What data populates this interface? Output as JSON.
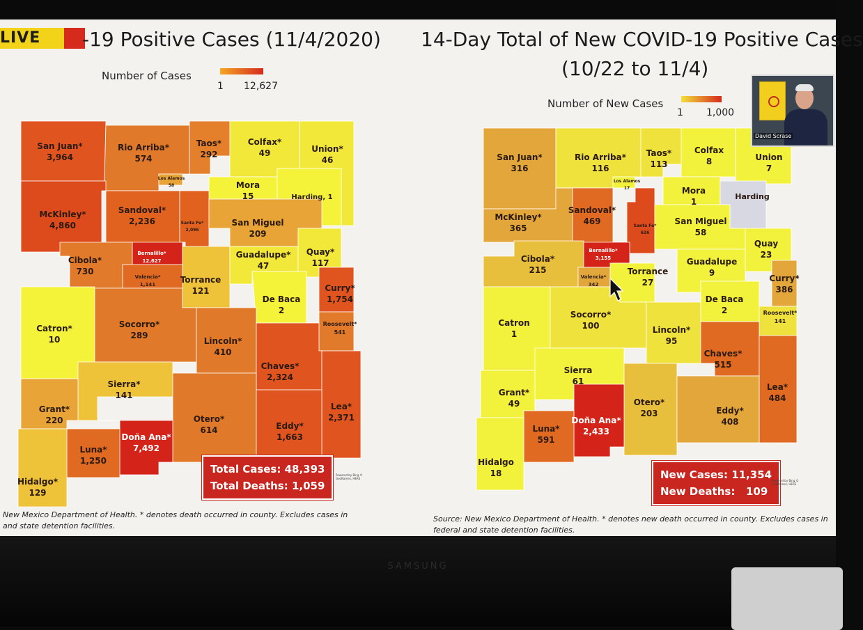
{
  "live_badge": "LIVE",
  "left_panel": {
    "title": "-19 Positive Cases (11/4/2020)",
    "legend_title": "Number of Cases",
    "legend_min": "1",
    "legend_max": "12,627",
    "legend_colors": [
      "#f5a623",
      "#d62a1c"
    ],
    "total_cases": "Total Cases: 48,393",
    "total_deaths": "Total Deaths: 1,059",
    "powered_by": "Powered by Bing © GeoNames, HERE",
    "source_line1": "New Mexico Department of Health. * denotes death occurred in county. Excludes cases in",
    "source_line2": "and state detention facilities.",
    "counties": [
      {
        "name": "San Juan*",
        "value": "3,964",
        "color": "#e0541f"
      },
      {
        "name": "Rio Arriba*",
        "value": "574",
        "color": "#e07a2a"
      },
      {
        "name": "Taos*",
        "value": "292",
        "color": "#e47f2c"
      },
      {
        "name": "Colfax*",
        "value": "49",
        "color": "#f1e83a"
      },
      {
        "name": "Union*",
        "value": "46",
        "color": "#f1e83a"
      },
      {
        "name": "Los Alamos",
        "value": "58",
        "color": "#e9a438"
      },
      {
        "name": "Mora",
        "value": "15",
        "color": "#f4f239"
      },
      {
        "name": "Harding, 1",
        "value": "",
        "color": "#f4f239"
      },
      {
        "name": "McKinley*",
        "value": "4,860",
        "color": "#dd4b1d"
      },
      {
        "name": "Sandoval*",
        "value": "2,236",
        "color": "#e1621f"
      },
      {
        "name": "Santa Fe*",
        "value": "2,096",
        "color": "#e1621f"
      },
      {
        "name": "San Miguel",
        "value": "209",
        "color": "#e9a438"
      },
      {
        "name": "Bernalillo*",
        "value": "12,627",
        "color": "#d42318"
      },
      {
        "name": "Cibola*",
        "value": "730",
        "color": "#e27a2b"
      },
      {
        "name": "Valencia*",
        "value": "1,141",
        "color": "#e06a22"
      },
      {
        "name": "Torrance",
        "value": "121",
        "color": "#eec33a"
      },
      {
        "name": "Guadalupe*",
        "value": "47",
        "color": "#f1e83a"
      },
      {
        "name": "Quay*",
        "value": "117",
        "color": "#f1e83a"
      },
      {
        "name": "De Baca",
        "value": "2",
        "color": "#f4f239"
      },
      {
        "name": "Curry*",
        "value": "1,754",
        "color": "#e0541f"
      },
      {
        "name": "Roosevelt*",
        "value": "541",
        "color": "#e27a2b"
      },
      {
        "name": "Catron*",
        "value": "10",
        "color": "#f4f239"
      },
      {
        "name": "Socorro*",
        "value": "289",
        "color": "#e07a2a"
      },
      {
        "name": "Lincoln*",
        "value": "410",
        "color": "#e07a2a"
      },
      {
        "name": "Chaves*",
        "value": "2,324",
        "color": "#e0541f"
      },
      {
        "name": "Sierra*",
        "value": "141",
        "color": "#eec33a"
      },
      {
        "name": "Grant*",
        "value": "220",
        "color": "#e9a438"
      },
      {
        "name": "Lea*",
        "value": "2,371",
        "color": "#e0541f"
      },
      {
        "name": "Otero*",
        "value": "614",
        "color": "#e07a2a"
      },
      {
        "name": "Eddy*",
        "value": "1,663",
        "color": "#e0541f"
      },
      {
        "name": "Doña Ana*",
        "value": "7,492",
        "color": "#d42318"
      },
      {
        "name": "Luna*",
        "value": "1,250",
        "color": "#e06a22"
      },
      {
        "name": "Hidalgo*",
        "value": "129",
        "color": "#eec33a"
      }
    ]
  },
  "right_panel": {
    "title_line1": "14-Day Total of New COVID-19 Positive Cases",
    "title_line2": "(10/22 to 11/4)",
    "legend_title": "Number of New Cases",
    "legend_min": "1",
    "legend_max": "1,000",
    "legend_colors": [
      "#f3e03a",
      "#d62a1c"
    ],
    "new_cases": "New Cases: 11,354",
    "new_deaths": "New Deaths:   109",
    "powered_by": "Powered by Bing © GeoNames, HERE",
    "source_line1": "Source: New Mexico Department of Health. * denotes new death occurred in county. Excludes cases in",
    "source_line2": "federal and state detention facilities.",
    "counties": [
      {
        "name": "San Juan*",
        "value": "316",
        "color": "#e3a63b"
      },
      {
        "name": "Rio Arriba*",
        "value": "116",
        "color": "#efe23c"
      },
      {
        "name": "Taos*",
        "value": "113",
        "color": "#efe23c"
      },
      {
        "name": "Colfax",
        "value": "8",
        "color": "#f2f23c"
      },
      {
        "name": "Union",
        "value": "7",
        "color": "#f2f23c"
      },
      {
        "name": "Los Alamos",
        "value": "17",
        "color": "#f2f23c"
      },
      {
        "name": "Mora",
        "value": "1",
        "color": "#f2f23c"
      },
      {
        "name": "Harding",
        "value": "",
        "color": "#d8d8e2"
      },
      {
        "name": "McKinley*",
        "value": "365",
        "color": "#e3a63b"
      },
      {
        "name": "Sandoval*",
        "value": "469",
        "color": "#e06a22"
      },
      {
        "name": "Santa Fe*",
        "value": "626",
        "color": "#dd4b1d"
      },
      {
        "name": "San Miguel",
        "value": "58",
        "color": "#f2f23c"
      },
      {
        "name": "Bernalillo*",
        "value": "3,155",
        "color": "#d42318"
      },
      {
        "name": "Cibola*",
        "value": "215",
        "color": "#e8bf3d"
      },
      {
        "name": "Valencia*",
        "value": "342",
        "color": "#e3a63b"
      },
      {
        "name": "Torrance",
        "value": "27",
        "color": "#f2f23c"
      },
      {
        "name": "Guadalupe",
        "value": "9",
        "color": "#f2f23c"
      },
      {
        "name": "Quay",
        "value": "23",
        "color": "#f2f23c"
      },
      {
        "name": "De Baca",
        "value": "2",
        "color": "#f2f23c"
      },
      {
        "name": "Curry*",
        "value": "386",
        "color": "#e3a63b"
      },
      {
        "name": "Roosevelt*",
        "value": "141",
        "color": "#efe23c"
      },
      {
        "name": "Catron",
        "value": "1",
        "color": "#f2f23c"
      },
      {
        "name": "Socorro*",
        "value": "100",
        "color": "#efe23c"
      },
      {
        "name": "Lincoln*",
        "value": "95",
        "color": "#efe23c"
      },
      {
        "name": "Chaves*",
        "value": "515",
        "color": "#e06a22"
      },
      {
        "name": "Sierra",
        "value": "61",
        "color": "#f2f23c"
      },
      {
        "name": "Grant*",
        "value": "49",
        "color": "#f2f23c"
      },
      {
        "name": "Lea*",
        "value": "484",
        "color": "#e06a22"
      },
      {
        "name": "Otero*",
        "value": "203",
        "color": "#e8bf3d"
      },
      {
        "name": "Eddy*",
        "value": "408",
        "color": "#e3a63b"
      },
      {
        "name": "Doña Ana*",
        "value": "2,433",
        "color": "#d42318"
      },
      {
        "name": "Luna*",
        "value": "591",
        "color": "#e06a22"
      },
      {
        "name": "Hidalgo",
        "value": "18",
        "color": "#f2f23c"
      }
    ]
  },
  "webcam": {
    "name_label": "David Scrase"
  },
  "tv_brand": "SAMSUNG"
}
